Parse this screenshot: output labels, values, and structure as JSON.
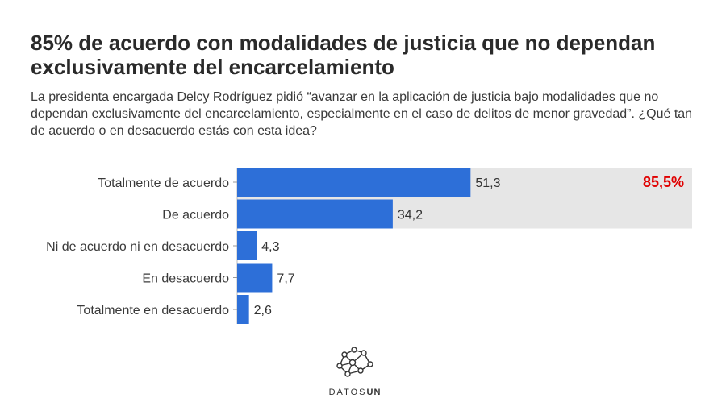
{
  "chart_data": {
    "type": "bar",
    "orientation": "horizontal",
    "title": "85% de acuerdo con modalidades de justicia que no dependan exclusivamente del encarcelamiento",
    "subtitle": "La presidenta encargada Delcy Rodríguez pidió “avanzar en la aplicación de justicia bajo modalidades que no dependan exclusivamente del encarcelamiento, especialmente en el caso de delitos de menor gravedad”. ¿Qué tan de acuerdo o en desacuerdo estás con esta idea?",
    "categories": [
      "Totalmente de acuerdo",
      "De acuerdo",
      "Ni de acuerdo ni en desacuerdo",
      "En desacuerdo",
      "Totalmente en desacuerdo"
    ],
    "values": [
      51.3,
      34.2,
      4.3,
      7.7,
      2.6
    ],
    "value_labels": [
      "51,3",
      "34,2",
      "4,3",
      "7,7",
      "2,6"
    ],
    "xlim": [
      0,
      100
    ],
    "highlight": {
      "label": "85,5%",
      "value": 85.5,
      "covers_categories": [
        0,
        1
      ]
    },
    "xlabel": "",
    "ylabel": ""
  },
  "colors": {
    "bar": "#2d6fd8",
    "highlight_band": "#e6e6e6",
    "highlight_text": "#e00000"
  },
  "brand": {
    "prefix": "DATOS",
    "suffix": "UN",
    "icon": "network-icon"
  }
}
